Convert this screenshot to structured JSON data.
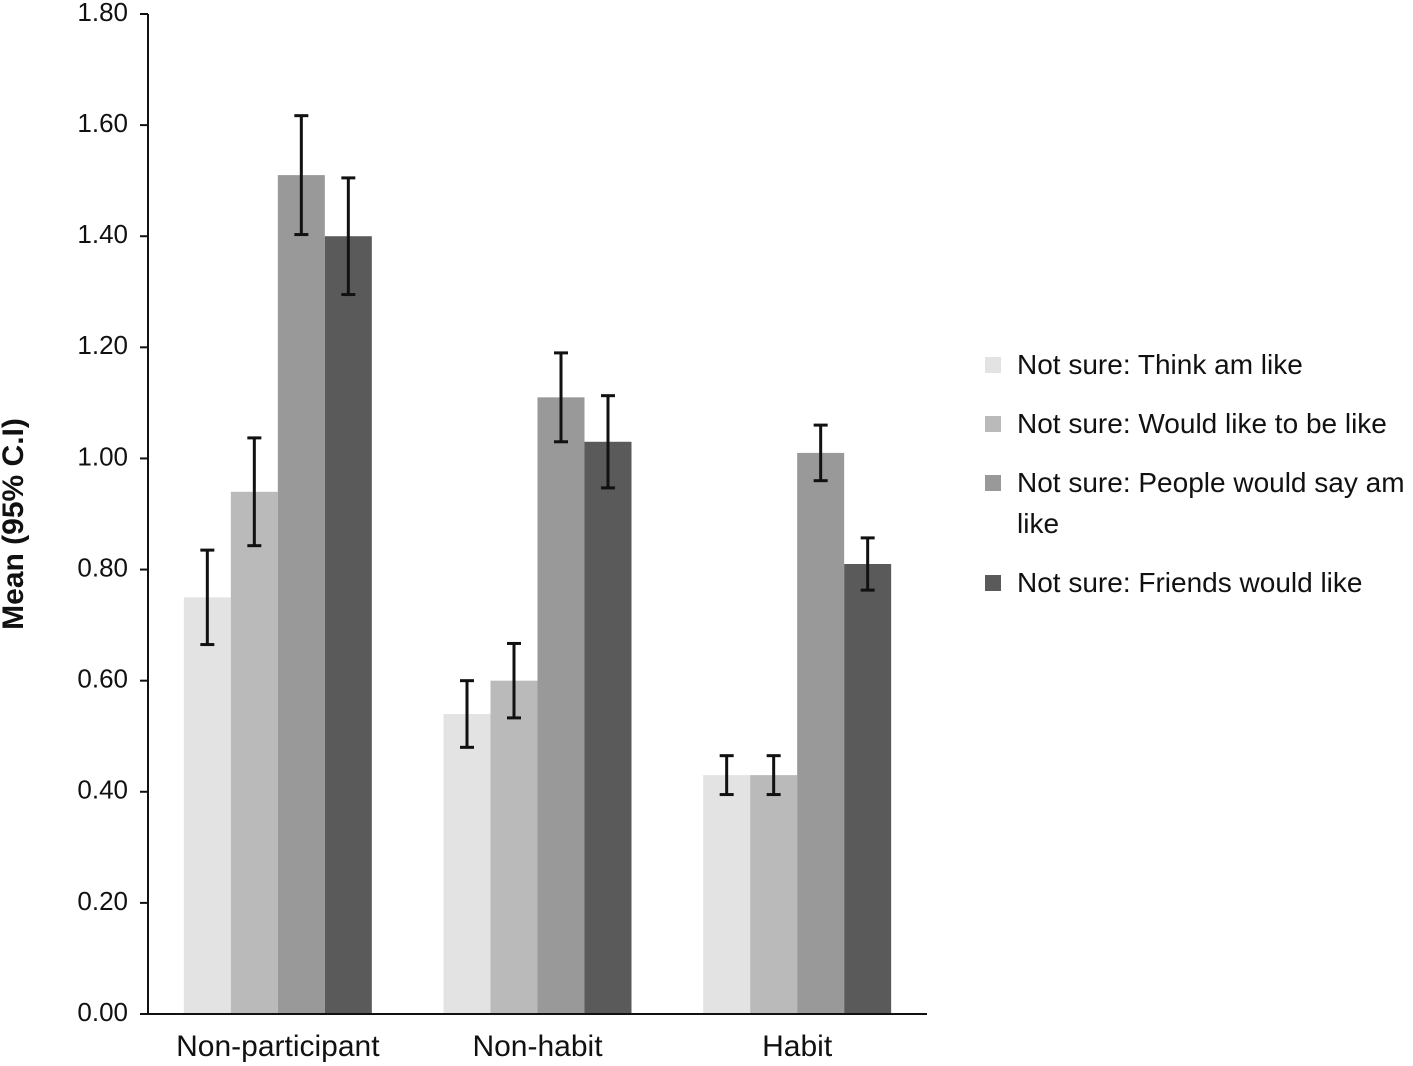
{
  "chart_data": {
    "type": "bar",
    "y_label": "Mean (95% C.I)",
    "categories": [
      "Non-participant",
      "Non-habit",
      "Habit"
    ],
    "series": [
      {
        "name": "Not sure: Think am like",
        "color": "#e3e3e3",
        "values": [
          0.75,
          0.54,
          0.43
        ],
        "errors": [
          0.085,
          0.06,
          0.035
        ]
      },
      {
        "name": "Not sure: Would like to be like",
        "color": "#bababa",
        "values": [
          0.94,
          0.6,
          0.43
        ],
        "errors": [
          0.097,
          0.067,
          0.035
        ]
      },
      {
        "name": "Not sure: People would say am like",
        "color": "#999999",
        "values": [
          1.51,
          1.11,
          1.01
        ],
        "errors": [
          0.107,
          0.08,
          0.05
        ]
      },
      {
        "name": "Not sure: Friends would like",
        "color": "#5a5a5a",
        "values": [
          1.4,
          1.03,
          0.81
        ],
        "errors": [
          0.105,
          0.083,
          0.047
        ]
      }
    ],
    "ylim": [
      0,
      1.8
    ],
    "yticks": [
      {
        "value": 0,
        "label": "0.00"
      },
      {
        "value": 0.2,
        "label": "0.20"
      },
      {
        "value": 0.4,
        "label": "0.40"
      },
      {
        "value": 0.6,
        "label": "0.60"
      },
      {
        "value": 0.8,
        "label": "0.80"
      },
      {
        "value": 1,
        "label": "1.00"
      },
      {
        "value": 1.2,
        "label": "1.20"
      },
      {
        "value": 1.4,
        "label": "1.40"
      },
      {
        "value": 1.6,
        "label": "1.60"
      },
      {
        "value": 1.8,
        "label": "1.80"
      }
    ],
    "legend": "right"
  }
}
